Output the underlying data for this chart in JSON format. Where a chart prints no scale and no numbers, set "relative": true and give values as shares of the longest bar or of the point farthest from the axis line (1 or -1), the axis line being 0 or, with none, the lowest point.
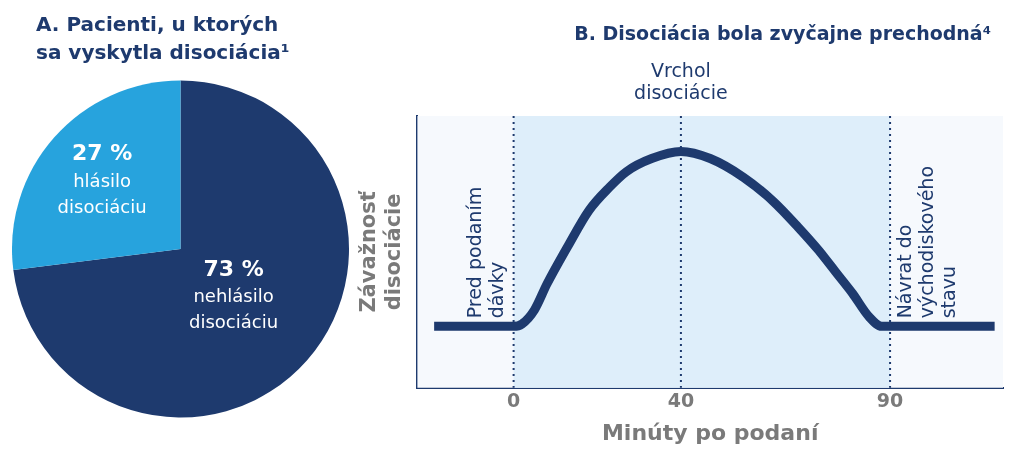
{
  "chart_data": [
    {
      "type": "pie",
      "title": "A. Pacienti, u ktorých sa vyskytla disociácia¹",
      "categories": [
        "nehlásilo disociáciu",
        "hlásilo disociáciu"
      ],
      "values": [
        73,
        27
      ],
      "colors": [
        "#1e3a6e",
        "#27a3dd"
      ],
      "value_labels": [
        "73 %",
        "27 %"
      ],
      "legend": false
    },
    {
      "type": "line",
      "title": "B. Disociácia bola zvyčajne prechodná⁴",
      "xlabel": "Minúty po podaní",
      "ylabel": "Závažnosť disociácie",
      "relative": true,
      "legend": false,
      "marker": "none",
      "line_style": "solid",
      "xlim": [
        -23,
        117
      ],
      "xticks": [
        0,
        40,
        90
      ],
      "series": [
        {
          "color": "#1e3a6e",
          "x": [
            -19,
            0,
            2,
            5,
            8,
            13,
            18,
            23,
            27,
            33,
            40,
            47,
            55,
            62,
            68,
            73,
            77,
            81,
            85,
            88,
            90,
            115
          ],
          "values": [
            0.26,
            0.26,
            0.27,
            0.33,
            0.44,
            0.6,
            0.75,
            0.85,
            0.915,
            0.97,
            1,
            0.97,
            0.89,
            0.79,
            0.68,
            0.58,
            0.49,
            0.4,
            0.3,
            0.26,
            0.26,
            0.26
          ]
        }
      ],
      "bands": [
        {
          "axis": "x",
          "from": 0,
          "to": 90,
          "color": "#deeefa"
        }
      ],
      "ref_lines": [
        {
          "axis": "x",
          "value": 0,
          "label": "Pred podaním dávky",
          "color": "#1e3a6e",
          "line_style": "dotted"
        },
        {
          "axis": "x",
          "value": 40,
          "label": "Vrchol disociácie",
          "color": "#1e3a6e",
          "line_style": "dotted"
        },
        {
          "axis": "x",
          "value": 90,
          "label": "Návrat do východiskového stavu",
          "color": "#1e3a6e",
          "line_style": "dotted"
        }
      ]
    }
  ]
}
